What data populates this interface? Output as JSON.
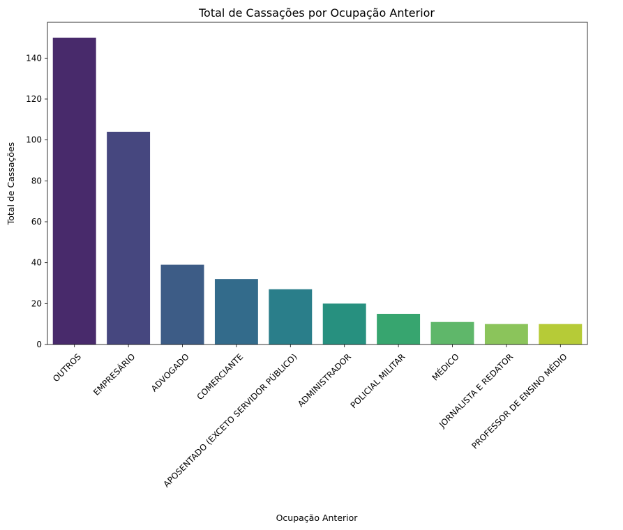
{
  "chart_data": {
    "type": "bar",
    "title": "Total de Cassações por Ocupação Anterior",
    "xlabel": "Ocupação Anterior",
    "ylabel": "Total de Cassações",
    "categories": [
      "OUTROS",
      "EMPRESÁRIO",
      "ADVOGADO",
      "COMERCIANTE",
      "APOSENTADO (EXCETO SERVIDOR PÚBLICO)",
      "ADMINISTRADOR",
      "POLICIAL MILITAR",
      "MÉDICO",
      "JORNALISTA E REDATOR",
      "PROFESSOR DE ENSINO MÉDIO"
    ],
    "values": [
      150,
      104,
      39,
      32,
      27,
      20,
      15,
      11,
      10,
      10
    ],
    "ylim": [
      0,
      157.5
    ],
    "yticks": [
      0,
      20,
      40,
      60,
      80,
      100,
      120,
      140
    ],
    "grid": false,
    "legend": "none",
    "colors": [
      "#482a6b",
      "#46477f",
      "#3d5c86",
      "#336b8b",
      "#2a7e8a",
      "#27907f",
      "#37a56f",
      "#5fb76a",
      "#8bc45b",
      "#b6cb37"
    ]
  }
}
